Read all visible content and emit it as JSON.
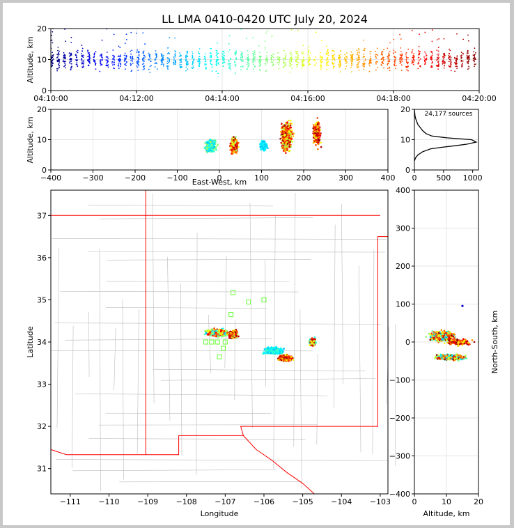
{
  "title": "LL LMA 0410-0420 UTC July 20, 2024",
  "colors": {
    "border": "#ff0000",
    "counties": "#bbbbbb",
    "grid": "#dddddd",
    "stations": "#66ff33"
  },
  "chart_data": [
    {
      "id": "time-height",
      "type": "scatter",
      "xlabel": "",
      "ylabel": "Altitude, km",
      "xlim": [
        "04:10:00",
        "04:20:00"
      ],
      "ylim": [
        0,
        20
      ],
      "xticks": [
        "04:10:00",
        "04:12:00",
        "04:14:00",
        "04:16:00",
        "04:18:00",
        "04:20:00"
      ],
      "yticks": [
        0,
        10,
        20
      ],
      "colormap": "jet (color = time)"
    },
    {
      "id": "ew-height",
      "type": "scatter",
      "xlabel": "East-West, km",
      "ylabel": "Altitude, km",
      "xlim": [
        -400,
        400
      ],
      "ylim": [
        0,
        20
      ],
      "xticks": [
        "−400",
        "−300",
        "−200",
        "−100",
        "0",
        "100",
        "200",
        "300",
        "400"
      ],
      "yticks": [
        0,
        10,
        20
      ],
      "clusters_x_km": [
        -20,
        40,
        160,
        230
      ]
    },
    {
      "id": "altitude-histogram",
      "type": "line",
      "annotation": "24,177 sources",
      "xlim": [
        0,
        1100
      ],
      "ylim": [
        0,
        20
      ],
      "xticks": [
        0,
        500,
        1000
      ],
      "yticks": [
        0,
        10,
        20
      ],
      "x": [
        0,
        20,
        60,
        140,
        280,
        480,
        700,
        900,
        1060,
        980,
        560,
        300,
        200,
        140,
        100,
        60,
        40,
        20,
        10,
        0
      ],
      "y": [
        3,
        4,
        5,
        6,
        7,
        7.5,
        8,
        8.5,
        9.2,
        10,
        10.6,
        11.2,
        12,
        13,
        14,
        15,
        16,
        17,
        18,
        20
      ]
    },
    {
      "id": "plan-view",
      "type": "scatter",
      "xlabel": "Longitude",
      "ylabel": "Latitude",
      "xlim": [
        -111.5,
        -102.8
      ],
      "ylim": [
        30.4,
        37.6
      ],
      "xticks": [
        "−111",
        "−110",
        "−109",
        "−108",
        "−107",
        "−106",
        "−105",
        "−104",
        "−103"
      ],
      "yticks": [
        "31",
        "32",
        "33",
        "34",
        "35",
        "36",
        "37"
      ],
      "stations": [
        [
          -106.8,
          35.17
        ],
        [
          -106.0,
          35.0
        ],
        [
          -106.4,
          34.95
        ],
        [
          -106.85,
          34.65
        ],
        [
          -107.2,
          34.0
        ],
        [
          -107.0,
          34.0
        ],
        [
          -107.05,
          33.85
        ],
        [
          -107.15,
          33.65
        ],
        [
          -107.35,
          34.0
        ],
        [
          -107.5,
          34.0
        ]
      ]
    },
    {
      "id": "ns-height",
      "type": "scatter",
      "xlabel": "Altitude, km",
      "ylabel": "North-South, km",
      "xlim": [
        0,
        20
      ],
      "ylim": [
        -400,
        400
      ],
      "xticks": [
        0,
        10,
        20
      ],
      "yticks": [
        "−400",
        "−300",
        "−200",
        "−100",
        "0",
        "100",
        "200",
        "300",
        "400"
      ]
    }
  ]
}
